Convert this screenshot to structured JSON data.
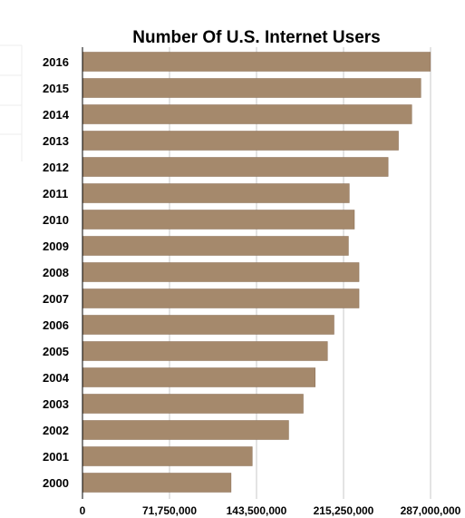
{
  "chart_data": {
    "type": "bar",
    "orientation": "horizontal",
    "title": "Number Of U.S. Internet Users",
    "categories": [
      "2016",
      "2015",
      "2014",
      "2013",
      "2012",
      "2011",
      "2010",
      "2009",
      "2008",
      "2007",
      "2006",
      "2005",
      "2004",
      "2003",
      "2002",
      "2001",
      "2000"
    ],
    "values": [
      286900000,
      279000000,
      271500000,
      260500000,
      252000000,
      220000000,
      224200000,
      219300000,
      228000000,
      228000000,
      207400000,
      202000000,
      191900000,
      182000000,
      170000000,
      140000000,
      122500000
    ],
    "xlim": [
      0,
      287000000
    ],
    "xticks": [
      "0",
      "71,750,000",
      "143,500,000",
      "215,250,000",
      "287,000,000"
    ],
    "xtick_values": [
      0,
      71750000,
      143500000,
      215250000,
      287000000
    ],
    "grid": true,
    "bar_color": "#a5896c",
    "xlabel": "",
    "ylabel": ""
  }
}
